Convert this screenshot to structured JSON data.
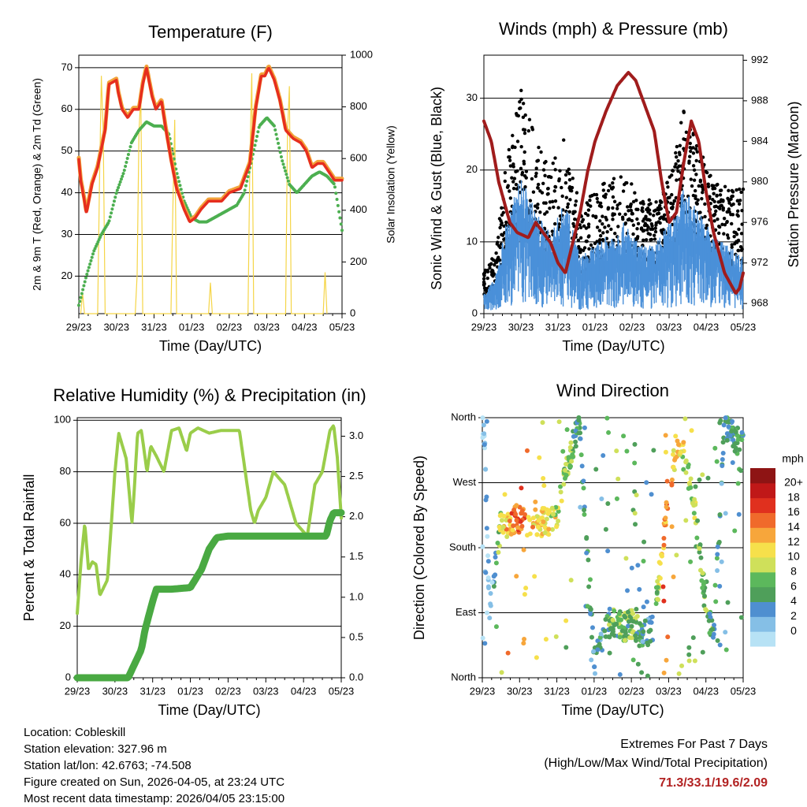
{
  "x_ticks": [
    "29/23",
    "30/23",
    "31/23",
    "01/23",
    "02/23",
    "03/23",
    "04/23",
    "05/23"
  ],
  "xlabel": "Time (Day/UTC)",
  "colors": {
    "temp_2m": "#e62e1e",
    "temp_9m": "#f2a33a",
    "dewpoint": "#4caf50",
    "solar": "#f5d547",
    "wind": "#4a90d9",
    "gust": "#000000",
    "pressure": "#a01c1c",
    "rh": "#9acd4a",
    "precip": "#49a942"
  },
  "panels": {
    "temperature": {
      "title": "Temperature (F)",
      "ylabel_left": "2m & 9m T (Red, Orange) & 2m Td (Green)",
      "ylabel_right": "Solar Insolation (Yellow)",
      "yticks_left": [
        "20",
        "30",
        "40",
        "50",
        "60",
        "70"
      ],
      "yticks_right": [
        "0",
        "200",
        "400",
        "600",
        "800",
        "1000"
      ]
    },
    "winds": {
      "title": "Winds (mph) & Pressure (mb)",
      "ylabel_left": "Sonic Wind & Gust (Blue, Black)",
      "ylabel_right": "Station Pressure (Maroon)",
      "yticks_left": [
        "0",
        "10",
        "20",
        "30"
      ],
      "yticks_right": [
        "968",
        "972",
        "976",
        "980",
        "984",
        "988",
        "992"
      ]
    },
    "humidity": {
      "title": "Relative Humidity (%) & Precipitation (in)",
      "ylabel_left": "Percent & Total Rainfall",
      "yticks_left": [
        "0",
        "20",
        "40",
        "60",
        "80",
        "100"
      ],
      "yticks_right": [
        "0.0",
        "0.5",
        "1.0",
        "1.5",
        "2.0",
        "2.5",
        "3.0"
      ]
    },
    "direction": {
      "title": "Wind Direction",
      "ylabel_left": "Direction (Colored By Speed)",
      "yticks_left": [
        "North",
        "East",
        "South",
        "West",
        "North"
      ],
      "colorbar_title": "mph",
      "colorbar_labels": [
        "0",
        "2",
        "4",
        "6",
        "8",
        "10",
        "12",
        "14",
        "16",
        "18",
        "20+"
      ],
      "colorbar_colors": [
        "#b7e2f5",
        "#85bfe6",
        "#4f8fd0",
        "#4f9f5a",
        "#5cb85c",
        "#cfe05a",
        "#f6e04b",
        "#f7a63b",
        "#f06a2b",
        "#e0301e",
        "#c01818",
        "#8e1414"
      ]
    }
  },
  "chart_data": [
    {
      "type": "line",
      "title": "Temperature (F)",
      "xlabel": "Time (Day/UTC)",
      "ylabel": "2m & 9m T (Red, Orange) & 2m Td (Green)",
      "ylabel_right": "Solar Insolation (Yellow)",
      "ylim": [
        11,
        73
      ],
      "ylim_right": [
        0,
        1000
      ],
      "x_day_span": [
        0,
        7
      ],
      "series": [
        {
          "name": "2m T",
          "color": "#e62e1e",
          "x": [
            0,
            0.05,
            0.15,
            0.2,
            0.35,
            0.5,
            0.7,
            0.8,
            1.0,
            1.05,
            1.15,
            1.3,
            1.45,
            1.6,
            1.7,
            1.8,
            1.95,
            2.05,
            2.2,
            2.3,
            2.45,
            2.6,
            2.8,
            2.95,
            3.1,
            3.25,
            3.45,
            3.6,
            3.8,
            4.0,
            4.3,
            4.55,
            4.7,
            4.85,
            4.95,
            5.05,
            5.2,
            5.35,
            5.5,
            5.7,
            5.9,
            6.05,
            6.2,
            6.35,
            6.5,
            6.65,
            6.8,
            7.0
          ],
          "values": [
            48,
            43,
            38,
            35,
            42,
            46,
            55,
            66,
            67,
            64,
            60,
            58,
            60,
            60,
            66,
            70,
            63,
            60,
            62,
            56,
            48,
            41,
            36,
            33,
            34,
            36,
            38,
            38,
            38,
            40,
            41,
            47,
            60,
            68,
            68,
            70,
            67,
            62,
            55,
            53,
            52,
            50,
            46,
            47,
            47,
            45,
            43,
            43
          ]
        },
        {
          "name": "2m Td",
          "color": "#4caf50",
          "x": [
            0,
            0.2,
            0.4,
            0.6,
            0.8,
            1.0,
            1.2,
            1.4,
            1.6,
            1.8,
            2.0,
            2.2,
            2.4,
            2.6,
            2.8,
            3.0,
            3.2,
            3.4,
            3.6,
            3.8,
            4.0,
            4.2,
            4.4,
            4.6,
            4.8,
            5.0,
            5.2,
            5.4,
            5.6,
            5.8,
            6.0,
            6.2,
            6.4,
            6.6,
            6.8,
            7.0
          ],
          "values": [
            13,
            20,
            26,
            30,
            33,
            40,
            45,
            52,
            55,
            57,
            56,
            56,
            54,
            45,
            38,
            34,
            33,
            33,
            34,
            35,
            36,
            37,
            40,
            48,
            56,
            58,
            56,
            48,
            42,
            40,
            42,
            44,
            45,
            44,
            42,
            31
          ]
        },
        {
          "name": "Solar",
          "color": "#f5d547",
          "axis": "right",
          "x": [
            0.05,
            0.1,
            0.15,
            0.5,
            0.55,
            0.6,
            0.65,
            0.7,
            1.5,
            1.55,
            1.6,
            1.65,
            1.7,
            2.45,
            2.5,
            2.55,
            2.6,
            3.45,
            3.5,
            3.55,
            4.5,
            4.55,
            4.6,
            4.65,
            5.5,
            5.55,
            5.6,
            5.65,
            6.5,
            6.55,
            6.6
          ],
          "values": [
            0,
            80,
            0,
            0,
            500,
            920,
            700,
            0,
            0,
            150,
            700,
            850,
            0,
            0,
            400,
            750,
            0,
            0,
            120,
            0,
            0,
            600,
            930,
            0,
            0,
            700,
            880,
            0,
            0,
            160,
            0
          ]
        }
      ]
    },
    {
      "type": "line",
      "title": "Winds (mph) & Pressure (mb)",
      "xlabel": "Time (Day/UTC)",
      "ylabel": "Sonic Wind & Gust (Blue, Black)",
      "ylabel_right": "Station Pressure (Maroon)",
      "ylim": [
        0,
        36
      ],
      "ylim_right": [
        967,
        992.5
      ],
      "x_day_span": [
        0,
        7
      ],
      "series": [
        {
          "name": "Pressure",
          "color": "#a01c1c",
          "axis": "right",
          "x": [
            0,
            0.2,
            0.4,
            0.7,
            0.9,
            1.2,
            1.4,
            1.6,
            1.8,
            2.0,
            2.2,
            2.4,
            2.6,
            2.8,
            3.0,
            3.3,
            3.6,
            3.9,
            4.1,
            4.3,
            4.6,
            4.8,
            5.0,
            5.2,
            5.4,
            5.6,
            5.8,
            6.0,
            6.2,
            6.5,
            6.8,
            6.9,
            7.0
          ],
          "values": [
            986,
            984,
            980,
            976,
            975,
            974.5,
            976,
            975,
            974,
            972,
            971,
            974,
            977,
            981,
            984,
            987,
            989.5,
            990.8,
            990,
            988,
            985,
            980,
            976,
            977,
            982,
            986,
            984,
            979,
            975,
            971,
            969,
            969.5,
            971
          ]
        },
        {
          "name": "Sonic Wind",
          "color": "#4a90d9",
          "x": [
            0,
            0.3,
            0.6,
            1.0,
            1.4,
            1.8,
            2.2,
            2.6,
            3.0,
            3.4,
            3.8,
            4.2,
            4.6,
            5.0,
            5.4,
            5.8,
            6.2,
            6.6,
            7.0
          ],
          "values": [
            2,
            3,
            8,
            12,
            9,
            7,
            10,
            5,
            6,
            7,
            8,
            6,
            6,
            8,
            11,
            9,
            7,
            6,
            5
          ]
        },
        {
          "name": "Gust",
          "color": "#000000",
          "x": [
            0,
            0.3,
            0.6,
            1.0,
            1.4,
            1.8,
            2.2,
            2.6,
            3.0,
            3.4,
            3.8,
            4.2,
            4.6,
            5.0,
            5.4,
            5.8,
            6.2,
            6.6,
            7.0
          ],
          "values": [
            4,
            6,
            15,
            22,
            17,
            14,
            18,
            10,
            12,
            13,
            14,
            11,
            11,
            13,
            20,
            16,
            13,
            12,
            12
          ]
        }
      ]
    },
    {
      "type": "line",
      "title": "Relative Humidity (%) & Precipitation (in)",
      "xlabel": "Time (Day/UTC)",
      "ylabel": "Percent & Total Rainfall",
      "ylim": [
        0,
        101
      ],
      "ylim_right": [
        0,
        3.23
      ],
      "x_day_span": [
        0,
        7
      ],
      "series": [
        {
          "name": "Relative Humidity",
          "color": "#9acd4a",
          "x": [
            0,
            0.1,
            0.2,
            0.3,
            0.4,
            0.5,
            0.6,
            0.8,
            1.0,
            1.1,
            1.3,
            1.45,
            1.5,
            1.6,
            1.7,
            1.85,
            1.95,
            2.1,
            2.3,
            2.5,
            2.7,
            2.9,
            3.0,
            3.2,
            3.5,
            3.8,
            4.0,
            4.3,
            4.6,
            4.7,
            4.8,
            5.0,
            5.2,
            5.5,
            5.8,
            6.1,
            6.3,
            6.5,
            6.7,
            6.8,
            6.9,
            7.0
          ],
          "values": [
            25,
            45,
            60,
            42,
            45,
            44,
            32,
            38,
            80,
            95,
            85,
            60,
            70,
            95,
            96,
            80,
            90,
            86,
            80,
            96,
            97,
            88,
            95,
            97,
            95,
            96,
            96,
            96,
            65,
            60,
            65,
            70,
            80,
            75,
            60,
            55,
            75,
            80,
            96,
            98,
            85,
            62
          ]
        },
        {
          "name": "Total Precipitation",
          "color": "#49a942",
          "axis": "right",
          "x": [
            0,
            1.35,
            1.5,
            1.7,
            1.8,
            2.0,
            2.1,
            2.5,
            3.0,
            3.3,
            3.5,
            3.7,
            4.0,
            4.5,
            5.0,
            6.0,
            6.6,
            6.7,
            6.8,
            7.0
          ],
          "values": [
            0,
            0,
            0.15,
            0.35,
            0.6,
            0.95,
            1.1,
            1.1,
            1.12,
            1.35,
            1.6,
            1.74,
            1.76,
            1.76,
            1.76,
            1.76,
            1.76,
            1.95,
            2.05,
            2.05
          ]
        }
      ]
    },
    {
      "type": "scatter",
      "title": "Wind Direction",
      "xlabel": "Time (Day/UTC)",
      "ylabel": "Direction (Colored By Speed)",
      "yticks": [
        "North",
        "East",
        "South",
        "West",
        "North"
      ],
      "ylim": [
        0,
        360
      ],
      "x_day_span": [
        0,
        7
      ],
      "colorbar": {
        "title": "mph",
        "labels": [
          "0",
          "2",
          "4",
          "6",
          "8",
          "10",
          "12",
          "14",
          "16",
          "18",
          "20+"
        ]
      },
      "series": [
        {
          "name": "Wind Direction",
          "x": [
            0.05,
            0.2,
            0.5,
            0.7,
            1.0,
            1.2,
            1.5,
            1.8,
            2.0,
            2.3,
            2.6,
            3.0,
            3.3,
            3.5,
            3.8,
            4.0,
            4.3,
            4.6,
            4.9,
            5.2,
            5.5,
            5.8,
            6.0,
            6.2,
            6.5,
            6.8
          ],
          "values": [
            340,
            90,
            215,
            215,
            220,
            215,
            215,
            215,
            220,
            300,
            350,
            20,
            70,
            80,
            70,
            75,
            60,
            70,
            215,
            320,
            300,
            200,
            90,
            60,
            350,
            330
          ],
          "speeds": [
            1,
            2,
            10,
            14,
            16,
            14,
            12,
            12,
            10,
            8,
            6,
            4,
            6,
            8,
            7,
            8,
            6,
            4,
            16,
            12,
            10,
            8,
            8,
            6,
            4,
            6
          ]
        }
      ]
    }
  ],
  "footer": {
    "location": "Location: Cobleskill",
    "elevation": "Station elevation: 327.96 m",
    "latlon": "Station lat/lon: 42.6763; -74.508",
    "created": "Figure created on Sun, 2026-04-05, at 23:24 UTC",
    "recent": "Most recent data timestamp: 2026/04/05 23:15:00",
    "extremes_title": "Extremes For Past 7 Days",
    "extremes_subtitle": "(High/Low/Max Wind/Total Precipitation)",
    "extremes_values": "71.3/33.1/19.6/2.09"
  }
}
